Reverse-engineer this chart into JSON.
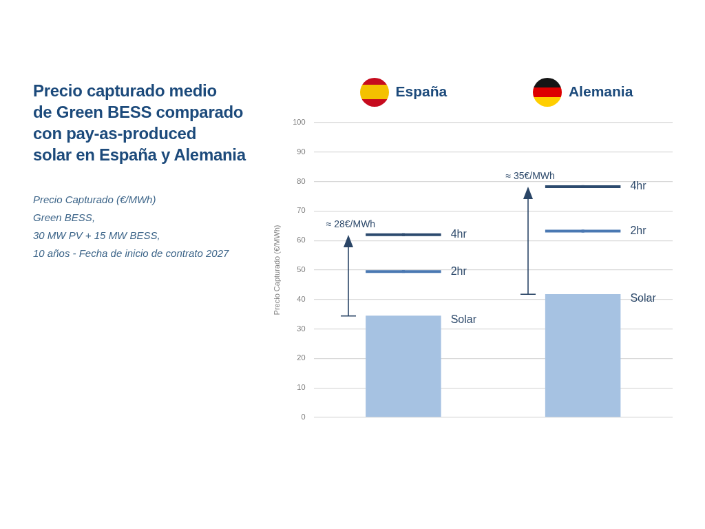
{
  "chart_data": {
    "type": "bar",
    "title": "Precio capturado medio\nde Green BESS comparado\ncon pay-as-produced\nsolar en España y Alemania",
    "subtitle": "Precio Capturado (€/MWh)\nGreen BESS,\n30 MW PV + 15 MW BESS,\n10 años - Fecha de inicio de contrato 2027",
    "ylabel": "Precio Capturado (€/MWh)",
    "categories": [
      "España",
      "Alemania"
    ],
    "series": [
      {
        "name": "Solar",
        "color": "#a6c2e2",
        "values": [
          34.5,
          41.8
        ]
      },
      {
        "name": "2hr",
        "type": "scatter",
        "color": "#4a78b2",
        "x": [
          "España",
          "Alemania"
        ],
        "values": [
          49.5,
          63.2
        ]
      },
      {
        "name": "4hr",
        "type": "scatter",
        "color": "#2c4a6e",
        "x": [
          "España",
          "Alemania"
        ],
        "values": [
          62.0,
          78.3
        ]
      }
    ],
    "ylim": [
      0,
      100
    ],
    "yticks": [
      0,
      10,
      20,
      30,
      40,
      50,
      60,
      70,
      80,
      90,
      100
    ],
    "grid": "y",
    "annotations": [
      "≈ 28€/MWh",
      "≈ 35€/MWh"
    ]
  }
}
